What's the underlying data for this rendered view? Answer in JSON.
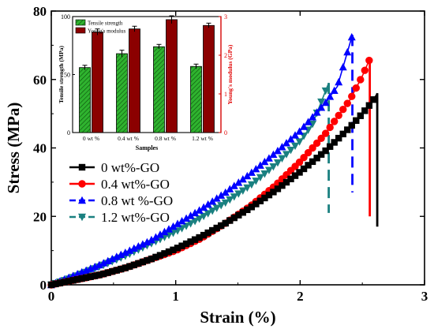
{
  "chart_data": [
    {
      "type": "line",
      "title": "",
      "xlabel": "Strain (%)",
      "ylabel": "Stress (MPa)",
      "xlim": [
        0,
        3
      ],
      "ylim": [
        0,
        80
      ],
      "xticks": [
        "0",
        "1",
        "2",
        "3"
      ],
      "yticks": [
        "0",
        "20",
        "40",
        "60",
        "80"
      ],
      "legend_position": "left-middle",
      "grid": false,
      "series": [
        {
          "name": "0 wt%-GO",
          "color": "#000000",
          "marker": "square",
          "linestyle": "solid",
          "x": [
            0,
            0.2,
            0.4,
            0.6,
            0.8,
            1.0,
            1.2,
            1.4,
            1.6,
            1.8,
            2.0,
            2.2,
            2.4,
            2.5,
            2.58,
            2.62
          ],
          "y": [
            0,
            1.5,
            3,
            5,
            7.5,
            10.5,
            14,
            18,
            22.5,
            27.5,
            33,
            39,
            46,
            50,
            53.5,
            56
          ],
          "fracture": {
            "x": 2.62,
            "y_from": 17,
            "y_to": 56
          }
        },
        {
          "name": "0.4 wt%-GO",
          "color": "#ff0000",
          "marker": "circle",
          "linestyle": "solid",
          "x": [
            0,
            0.2,
            0.4,
            0.6,
            0.8,
            1.0,
            1.2,
            1.4,
            1.6,
            1.8,
            2.0,
            2.2,
            2.4,
            2.5,
            2.56
          ],
          "y": [
            0,
            1.5,
            3,
            5,
            7.5,
            10,
            13.5,
            18,
            23,
            29,
            36,
            44,
            54,
            61,
            66
          ],
          "fracture": {
            "x": 2.56,
            "y_from": 20,
            "y_to": 66
          }
        },
        {
          "name": "0.8 wt %-GO",
          "color": "#0000ff",
          "marker": "triangle-up",
          "linestyle": "dashed",
          "x": [
            0,
            0.2,
            0.4,
            0.6,
            0.8,
            1.0,
            1.2,
            1.4,
            1.6,
            1.8,
            2.0,
            2.2,
            2.3,
            2.42
          ],
          "y": [
            0,
            3,
            6,
            9.5,
            13,
            17.5,
            22,
            27,
            32.5,
            38.5,
            45,
            53,
            58,
            73
          ],
          "fracture": {
            "x": 2.42,
            "y_from": 27,
            "y_to": 73
          }
        },
        {
          "name": "1.2 wt%-GO",
          "color": "#1a8080",
          "marker": "triangle-down",
          "linestyle": "dashed",
          "x": [
            0,
            0.2,
            0.4,
            0.6,
            0.8,
            1.0,
            1.2,
            1.4,
            1.6,
            1.8,
            2.0,
            2.1,
            2.23
          ],
          "y": [
            0,
            2.5,
            5.5,
            8.5,
            12,
            15.5,
            19.5,
            24,
            29,
            35,
            42,
            47,
            59
          ],
          "fracture": {
            "x": 2.23,
            "y_from": 21,
            "y_to": 59
          }
        }
      ]
    },
    {
      "type": "bar",
      "title": "",
      "xlabel": "Samples",
      "ylabel_left": "Tensile strength (MPa)",
      "ylabel_right": "Young's modulus (GPa)",
      "categories": [
        "0 wt %",
        "0.4 wt %",
        "0.8 wt %",
        "1.2 wt %"
      ],
      "ylim_left": [
        0,
        100
      ],
      "ylim_right": [
        0,
        3
      ],
      "yticks_left": [
        "0",
        "50",
        "100"
      ],
      "yticks_right": [
        "0",
        "1",
        "2",
        "3"
      ],
      "legend_position": "top-left",
      "series": [
        {
          "name": "Tensile strength",
          "color": "#2fb32f",
          "axis": "left",
          "values": [
            56,
            68,
            74,
            57
          ],
          "errors": [
            2,
            3,
            2,
            2
          ]
        },
        {
          "name": "Young's modulus",
          "color": "#8b0000",
          "axis": "right",
          "values": [
            2.6,
            2.68,
            2.92,
            2.77
          ],
          "errors": [
            0.08,
            0.07,
            0.1,
            0.06
          ]
        }
      ]
    }
  ]
}
